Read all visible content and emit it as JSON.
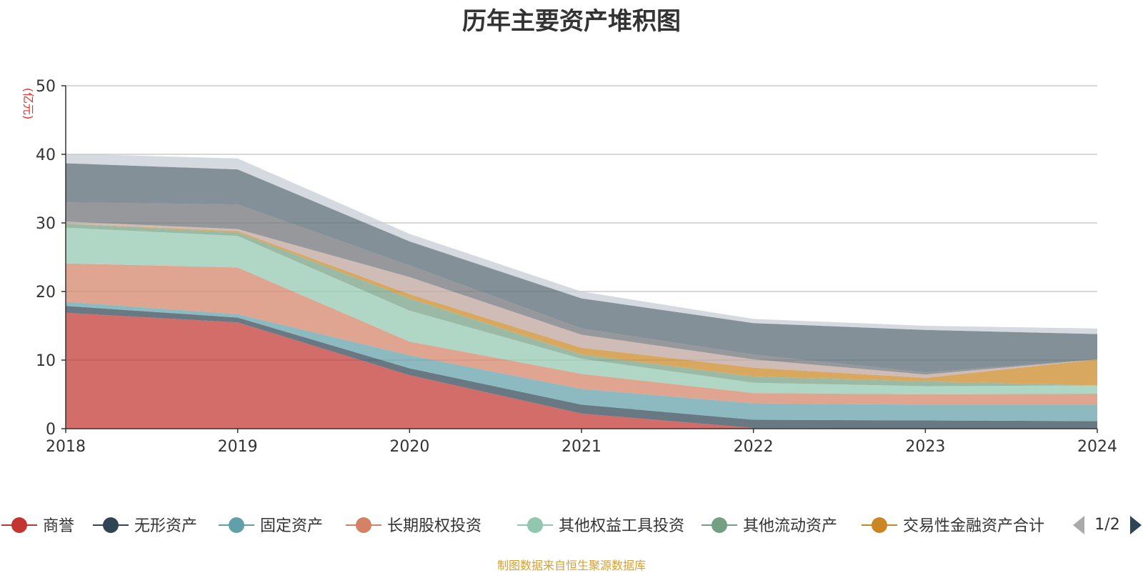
{
  "title": "历年主要资产堆积图",
  "source_note": "制图数据来自恒生聚源数据库",
  "legend_pager": "1/2",
  "chart_data": {
    "type": "area",
    "stacked": true,
    "title": "历年主要资产堆积图",
    "ylabel": "(亿元)",
    "xlabel": "",
    "ylim": [
      0,
      50
    ],
    "yticks": [
      0,
      10,
      20,
      30,
      40,
      50
    ],
    "grid": true,
    "legend_position": "bottom",
    "categories": [
      "2018",
      "2019",
      "2020",
      "2021",
      "2022",
      "2023",
      "2024"
    ],
    "series": [
      {
        "name": "商誉",
        "color": "#c23531",
        "legend": true,
        "values": [
          16.9,
          15.5,
          7.8,
          2.2,
          0.1,
          0.0,
          0.0
        ]
      },
      {
        "name": "无形资产",
        "color": "#2f4554",
        "legend": true,
        "values": [
          1.0,
          0.7,
          1.0,
          1.3,
          1.2,
          1.2,
          1.1
        ]
      },
      {
        "name": "固定资产",
        "color": "#61a0a8",
        "legend": true,
        "values": [
          0.6,
          0.5,
          1.9,
          2.3,
          2.4,
          2.3,
          2.4
        ]
      },
      {
        "name": "长期股权投资",
        "color": "#d48265",
        "legend": true,
        "values": [
          5.6,
          6.8,
          2.0,
          2.2,
          1.5,
          1.5,
          1.6
        ]
      },
      {
        "name": "其他权益工具投资",
        "color": "#91c7ae",
        "legend": true,
        "values": [
          5.2,
          4.6,
          4.5,
          2.2,
          1.5,
          1.2,
          1.2
        ]
      },
      {
        "name": "其他流动资产",
        "color": "#749f83",
        "legend": true,
        "values": [
          0.6,
          0.5,
          1.8,
          0.6,
          0.9,
          0.7,
          0.0
        ]
      },
      {
        "name": "交易性金融资产合计",
        "color": "#ca8622",
        "legend": true,
        "values": [
          0.0,
          0.2,
          0.6,
          1.0,
          1.3,
          0.5,
          3.8
        ]
      },
      {
        "name": "",
        "color": "#bda29a",
        "legend": false,
        "values": [
          0.3,
          0.3,
          2.5,
          1.9,
          1.2,
          0.5,
          0.0
        ]
      },
      {
        "name": "",
        "color": "#6e7074",
        "legend": false,
        "values": [
          2.8,
          3.6,
          1.7,
          0.9,
          0.7,
          0.3,
          0.0
        ]
      },
      {
        "name": "",
        "color": "#546570",
        "legend": false,
        "values": [
          5.7,
          5.1,
          3.5,
          4.4,
          4.6,
          6.2,
          3.7
        ]
      },
      {
        "name": "",
        "color": "#c4ccd3",
        "legend": false,
        "values": [
          1.4,
          1.6,
          1.1,
          1.0,
          0.6,
          0.6,
          0.8
        ]
      }
    ]
  }
}
